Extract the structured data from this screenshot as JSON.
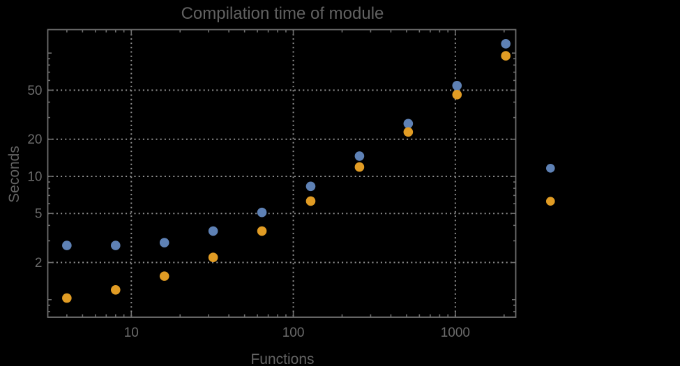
{
  "chart_data": {
    "type": "scatter",
    "title": "Compilation time of module",
    "xlabel": "Functions",
    "ylabel": "Seconds",
    "x_scale": "log",
    "y_scale": "log",
    "x": [
      4,
      8,
      16,
      32,
      64,
      128,
      256,
      512,
      1024,
      2048
    ],
    "series": [
      {
        "name": "blue",
        "color": "#5E81B5",
        "values": [
          2.75,
          2.75,
          2.9,
          3.6,
          5.1,
          8.3,
          14.6,
          26.8,
          54.5,
          119
        ]
      },
      {
        "name": "orange",
        "color": "#E19C24",
        "values": [
          1.03,
          1.2,
          1.55,
          2.2,
          3.6,
          6.3,
          11.9,
          22.9,
          46,
          95
        ]
      }
    ],
    "x_tick_values": [
      10,
      100,
      1000
    ],
    "x_tick_labels": [
      "10",
      "100",
      "1000"
    ],
    "y_tick_values": [
      2,
      5,
      10,
      20,
      50
    ],
    "y_tick_labels": [
      "2",
      "5",
      "10",
      "20",
      "50"
    ],
    "x_range": [
      3.05,
      2360
    ],
    "y_range": [
      0.72,
      155
    ],
    "grid": "dotted",
    "legend": {
      "position": "right-outside",
      "labels_visible": false,
      "entries": [
        {
          "series": "blue"
        },
        {
          "series": "orange"
        }
      ]
    }
  },
  "colors": {
    "background": "#000000",
    "frame": "#6f6f6f",
    "grid": "#8f8f8f",
    "title_text": "#616161",
    "axis_label_text": "#636363",
    "tick_label_text": "#6b6b6b",
    "series_blue": "#5E81B5",
    "series_orange": "#E19C24"
  }
}
